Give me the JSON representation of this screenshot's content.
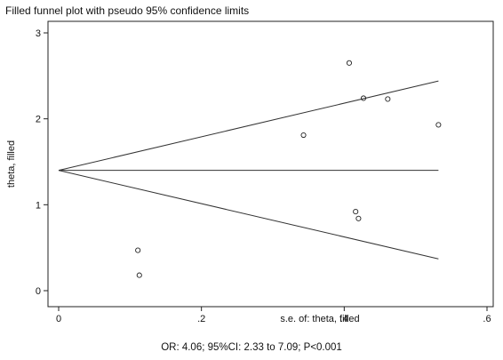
{
  "page": {
    "title": "Filled funnel plot with pseudo 95% confidence limits",
    "caption": "OR: 4.06; 95%CI: 2.33 to 7.09; P<0.001"
  },
  "chart_data": {
    "type": "scatter",
    "title": "Filled funnel plot with pseudo 95% confidence limits",
    "xlabel": "s.e. of: theta, filled",
    "ylabel": "theta, filled",
    "xlim": [
      0,
      0.6
    ],
    "ylim": [
      0,
      3
    ],
    "xticks": [
      0,
      0.2,
      0.4,
      0.6
    ],
    "xtick_labels": [
      "0",
      ".2",
      ".4",
      ".6"
    ],
    "yticks": [
      0,
      1,
      2,
      3
    ],
    "ytick_labels": [
      "0",
      "1",
      "2",
      "3"
    ],
    "grid": false,
    "points": [
      {
        "x": 0.111,
        "y": 0.47
      },
      {
        "x": 0.113,
        "y": 0.18
      },
      {
        "x": 0.343,
        "y": 1.81
      },
      {
        "x": 0.407,
        "y": 2.65
      },
      {
        "x": 0.416,
        "y": 0.92
      },
      {
        "x": 0.42,
        "y": 0.84
      },
      {
        "x": 0.427,
        "y": 2.24
      },
      {
        "x": 0.461,
        "y": 2.23
      },
      {
        "x": 0.532,
        "y": 1.93
      }
    ],
    "pooled_estimate": 1.4,
    "funnel": {
      "apex": {
        "x": 0,
        "y": 1.4
      },
      "upper_end": {
        "x": 0.532,
        "y": 2.44
      },
      "lower_end": {
        "x": 0.532,
        "y": 0.37
      },
      "center_end": {
        "x": 0.532,
        "y": 1.4
      }
    }
  }
}
